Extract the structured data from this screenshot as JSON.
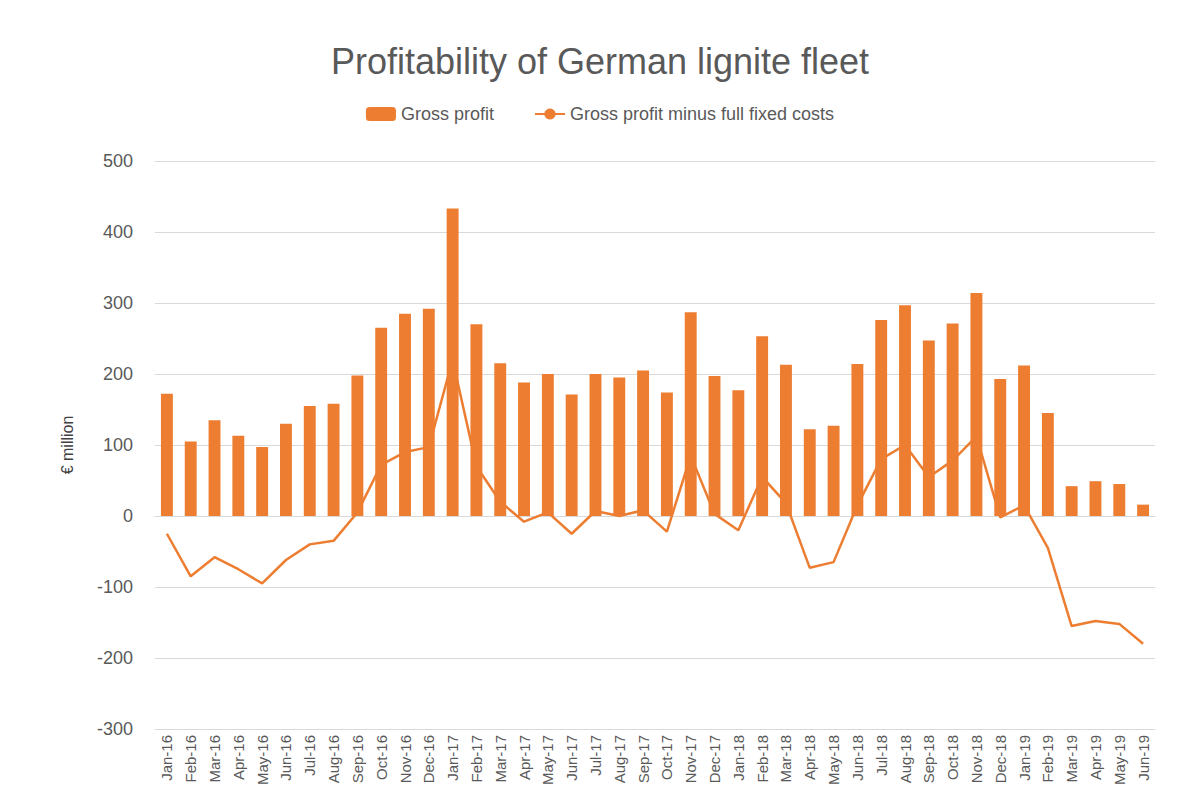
{
  "chart_data": {
    "type": "bar",
    "title": "Profitability of German lignite fleet",
    "y_label": "€ million",
    "categories": [
      "Jan-16",
      "Feb-16",
      "Mar-16",
      "Apr-16",
      "May-16",
      "Jun-16",
      "Jul-16",
      "Aug-16",
      "Sep-16",
      "Oct-16",
      "Nov-16",
      "Dec-16",
      "Jan-17",
      "Feb-17",
      "Mar-17",
      "Apr-17",
      "May-17",
      "Jun-17",
      "Jul-17",
      "Aug-17",
      "Sep-17",
      "Oct-17",
      "Nov-17",
      "Dec-17",
      "Jan-18",
      "Feb-18",
      "Mar-18",
      "Apr-18",
      "May-18",
      "Jun-18",
      "Jul-18",
      "Aug-18",
      "Sep-18",
      "Oct-18",
      "Nov-18",
      "Dec-18",
      "Jan-19",
      "Feb-19",
      "Mar-19",
      "Apr-19",
      "May-19",
      "Jun-19"
    ],
    "series": [
      {
        "name": "Gross profit",
        "type": "bar",
        "color": "#ED7D31",
        "values": [
          172,
          105,
          135,
          113,
          97,
          130,
          155,
          158,
          198,
          265,
          285,
          292,
          433,
          270,
          215,
          188,
          200,
          171,
          200,
          195,
          205,
          174,
          287,
          197,
          177,
          253,
          213,
          122,
          127,
          214,
          276,
          297,
          247,
          271,
          314,
          193,
          212,
          145,
          42,
          49,
          45,
          16
        ]
      },
      {
        "name": "Gross profit minus full fixed costs",
        "type": "line",
        "color": "#ED7D31",
        "marker": "none",
        "line_style": "solid",
        "values": [
          -25,
          -85,
          -58,
          -75,
          -95,
          -62,
          -40,
          -35,
          5,
          72,
          90,
          97,
          220,
          70,
          20,
          -8,
          5,
          -25,
          7,
          0,
          8,
          -22,
          85,
          3,
          -20,
          55,
          18,
          -73,
          -65,
          15,
          80,
          100,
          55,
          78,
          112,
          -2,
          15,
          -45,
          -155,
          -148,
          -152,
          -180
        ]
      }
    ],
    "ylim": [
      -300,
      500
    ],
    "yticks": [
      -300,
      -200,
      -100,
      0,
      100,
      200,
      300,
      400,
      500
    ],
    "grid": true,
    "legend": "top"
  }
}
